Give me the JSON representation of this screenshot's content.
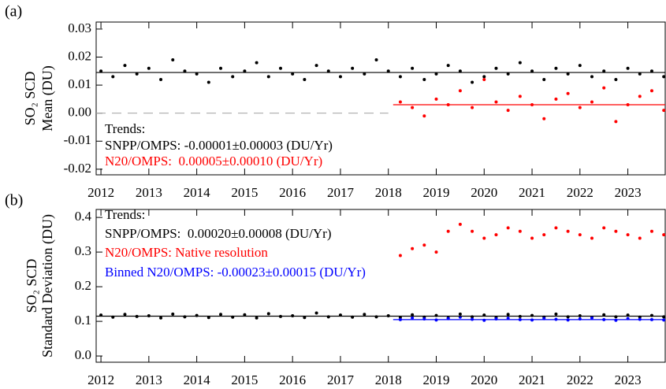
{
  "chart_data": [
    {
      "type": "scatter",
      "panel_label": "(a)",
      "ylabel": [
        "SO₂ SCD",
        "Mean (DU)"
      ],
      "xlim": [
        2011.9,
        2023.78
      ],
      "xticks": [
        2012,
        2013,
        2014,
        2015,
        2016,
        2017,
        2018,
        2019,
        2020,
        2021,
        2022,
        2023
      ],
      "ylim": [
        -0.022,
        0.0325
      ],
      "yticks": [
        0.03,
        0.02,
        0.01,
        {
          "value": 0,
          "label": "0.00"
        },
        -0.01,
        -0.02
      ],
      "series": [
        {
          "color": "#000000",
          "x": [
            2012.0,
            2012.25,
            2012.5,
            2012.75,
            2013.0,
            2013.25,
            2013.5,
            2013.75,
            2014.0,
            2014.25,
            2014.5,
            2014.75,
            2015.0,
            2015.25,
            2015.5,
            2015.75,
            2016.0,
            2016.25,
            2016.5,
            2016.75,
            2017.0,
            2017.25,
            2017.5,
            2017.75,
            2018.0,
            2018.25,
            2018.5,
            2018.75,
            2019.0,
            2019.25,
            2019.5,
            2019.75,
            2020.0,
            2020.25,
            2020.5,
            2020.75,
            2021.0,
            2021.25,
            2021.5,
            2021.75,
            2022.0,
            2022.25,
            2022.5,
            2022.75,
            2023.0,
            2023.25,
            2023.5,
            2023.75
          ],
          "values": [
            0.015,
            0.013,
            0.017,
            0.014,
            0.016,
            0.012,
            0.019,
            0.015,
            0.014,
            0.011,
            0.016,
            0.013,
            0.015,
            0.018,
            0.013,
            0.016,
            0.014,
            0.012,
            0.017,
            0.015,
            0.013,
            0.016,
            0.014,
            0.019,
            0.015,
            0.013,
            0.016,
            0.012,
            0.014,
            0.017,
            0.015,
            0.011,
            0.013,
            0.016,
            0.014,
            0.018,
            0.015,
            0.012,
            0.016,
            0.014,
            0.017,
            0.013,
            0.015,
            0.012,
            0.016,
            0.014,
            0.015,
            0.013
          ]
        },
        {
          "color": "#ff0000",
          "x": [
            2018.25,
            2018.5,
            2018.75,
            2019.0,
            2019.25,
            2019.5,
            2019.75,
            2020.0,
            2020.25,
            2020.5,
            2020.75,
            2021.0,
            2021.25,
            2021.5,
            2021.75,
            2022.0,
            2022.25,
            2022.5,
            2022.75,
            2023.0,
            2023.25,
            2023.5,
            2023.75
          ],
          "values": [
            0.004,
            0.002,
            -0.001,
            0.005,
            0.003,
            0.008,
            0.002,
            0.012,
            0.004,
            0.001,
            0.006,
            0.003,
            -0.002,
            0.005,
            0.007,
            0.002,
            0.004,
            0.009,
            -0.003,
            0.003,
            0.006,
            0.008,
            0.001
          ]
        }
      ],
      "lines": [
        {
          "color": "#aaaaaa",
          "dashed": true,
          "x": [
            2011.9,
            2018.0
          ],
          "values": [
            0,
            0
          ]
        },
        {
          "color": "#000000",
          "dashed": false,
          "x": [
            2011.9,
            2023.78
          ],
          "values": [
            0.0145,
            0.0145
          ]
        },
        {
          "color": "#ff0000",
          "dashed": false,
          "x": [
            2018.1,
            2023.78
          ],
          "values": [
            0.003,
            0.003
          ]
        }
      ],
      "annotations": [
        {
          "text": "Trends:",
          "color": "#000000"
        },
        {
          "text": "SNPP/OMPS: -0.00001±0.00003 (DU/Yr)",
          "color": "#000000"
        },
        {
          "text": "N20/OMPS:  0.00005±0.00010 (DU/Yr)",
          "color": "#ff0000"
        }
      ]
    },
    {
      "type": "scatter",
      "panel_label": "(b)",
      "ylabel": [
        "SO₂ SCD",
        "Standard Deviation (DU)"
      ],
      "xlim": [
        2011.9,
        2023.78
      ],
      "xticks": [
        2012,
        2013,
        2014,
        2015,
        2016,
        2017,
        2018,
        2019,
        2020,
        2021,
        2022,
        2023
      ],
      "ylim": [
        -0.018,
        0.423
      ],
      "yticks": [
        {
          "value": 0,
          "label": "0.0"
        },
        0.1,
        0.2,
        0.3,
        0.4
      ],
      "series": [
        {
          "color": "#000000",
          "x": [
            2012.0,
            2012.25,
            2012.5,
            2012.75,
            2013.0,
            2013.25,
            2013.5,
            2013.75,
            2014.0,
            2014.25,
            2014.5,
            2014.75,
            2015.0,
            2015.25,
            2015.5,
            2015.75,
            2016.0,
            2016.25,
            2016.5,
            2016.75,
            2017.0,
            2017.25,
            2017.5,
            2017.75,
            2018.0,
            2018.25,
            2018.5,
            2018.75,
            2019.0,
            2019.25,
            2019.5,
            2019.75,
            2020.0,
            2020.25,
            2020.5,
            2020.75,
            2021.0,
            2021.25,
            2021.5,
            2021.75,
            2022.0,
            2022.25,
            2022.5,
            2022.75,
            2023.0,
            2023.25,
            2023.5,
            2023.75
          ],
          "values": [
            0.118,
            0.112,
            0.12,
            0.114,
            0.116,
            0.11,
            0.121,
            0.113,
            0.117,
            0.111,
            0.12,
            0.112,
            0.119,
            0.11,
            0.122,
            0.114,
            0.116,
            0.111,
            0.124,
            0.113,
            0.118,
            0.112,
            0.12,
            0.113,
            0.116,
            0.111,
            0.119,
            0.112,
            0.117,
            0.11,
            0.121,
            0.113,
            0.118,
            0.111,
            0.12,
            0.114,
            0.117,
            0.112,
            0.121,
            0.113,
            0.116,
            0.111,
            0.119,
            0.113,
            0.118,
            0.112,
            0.117,
            0.113
          ]
        },
        {
          "color": "#ff0000",
          "x": [
            2018.25,
            2018.5,
            2018.75,
            2019.0,
            2019.25,
            2019.5,
            2019.75,
            2020.0,
            2020.25,
            2020.5,
            2020.75,
            2021.0,
            2021.25,
            2021.5,
            2021.75,
            2022.0,
            2022.25,
            2022.5,
            2022.75,
            2023.0,
            2023.25,
            2023.5,
            2023.75
          ],
          "values": [
            0.29,
            0.31,
            0.32,
            0.3,
            0.36,
            0.38,
            0.36,
            0.34,
            0.35,
            0.37,
            0.36,
            0.34,
            0.35,
            0.37,
            0.36,
            0.35,
            0.34,
            0.37,
            0.36,
            0.35,
            0.34,
            0.36,
            0.35
          ]
        },
        {
          "color": "#0000ff",
          "x": [
            2018.25,
            2018.5,
            2018.75,
            2019.0,
            2019.25,
            2019.5,
            2019.75,
            2020.0,
            2020.25,
            2020.5,
            2020.75,
            2021.0,
            2021.25,
            2021.5,
            2021.75,
            2022.0,
            2022.25,
            2022.5,
            2022.75,
            2023.0,
            2023.25,
            2023.5,
            2023.75
          ],
          "values": [
            0.105,
            0.11,
            0.107,
            0.104,
            0.108,
            0.112,
            0.106,
            0.103,
            0.107,
            0.109,
            0.105,
            0.104,
            0.108,
            0.106,
            0.104,
            0.107,
            0.11,
            0.105,
            0.103,
            0.108,
            0.106,
            0.105,
            0.104
          ]
        }
      ],
      "lines": [
        {
          "color": "#000000",
          "dashed": false,
          "x": [
            2011.9,
            2023.78
          ],
          "values": [
            0.115,
            0.115
          ]
        },
        {
          "color": "#0000ff",
          "dashed": false,
          "x": [
            2018.1,
            2023.78
          ],
          "values": [
            0.105,
            0.105
          ]
        }
      ],
      "annotations": [
        {
          "text": "Trends:",
          "color": "#000000"
        },
        {
          "text": "SNPP/OMPS:  0.00020±0.00008 (DU/Yr)",
          "color": "#000000"
        },
        {
          "text": "N20/OMPS: Native resolution",
          "color": "#ff0000"
        },
        {
          "text": "Binned N20/OMPS: -0.00023±0.00015 (DU/Yr)",
          "color": "#0000ff"
        }
      ]
    }
  ]
}
